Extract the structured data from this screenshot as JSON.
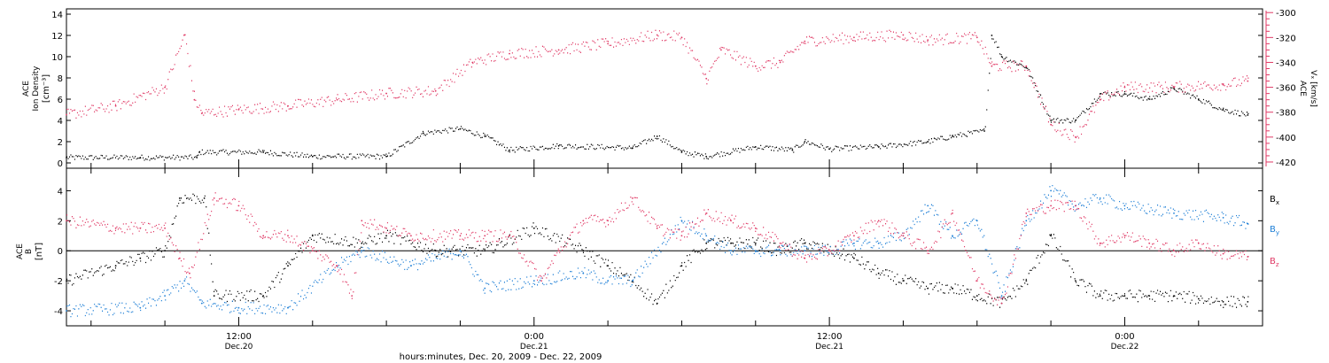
{
  "colors": {
    "black": "#000000",
    "magenta": "#e03a66",
    "blue": "#1e7fd6"
  },
  "time_axis": {
    "start_hour": 5,
    "end_hour": 53.6,
    "major": [
      {
        "hour": 12,
        "time": "12:00",
        "date": "Dec.20"
      },
      {
        "hour": 24,
        "time": "0:00",
        "date": "Dec.21"
      },
      {
        "hour": 36,
        "time": "12:00",
        "date": "Dec.21"
      },
      {
        "hour": 48,
        "time": "0:00",
        "date": "Dec.22"
      }
    ],
    "xlabel": "hours:minutes, Dec. 20, 2009 - Dec. 22, 2009"
  },
  "chart_data": [
    {
      "type": "scatter",
      "panel": "top",
      "ylabel_lines": [
        "ACE",
        "Ion Density",
        "[cm⁻³]"
      ],
      "ylim": [
        -0.5,
        14.5
      ],
      "yticks": [
        0,
        2,
        4,
        6,
        8,
        10,
        12,
        14
      ],
      "y2label_lines": [
        "ACE",
        "Vₓ [km/s]"
      ],
      "y2lim": [
        -425,
        -297
      ],
      "y2ticks": [
        -300,
        -320,
        -340,
        -360,
        -380,
        -400,
        -420
      ],
      "series": [
        {
          "name": "",
          "color": "black",
          "axis": "left",
          "hours": [
            5,
            8,
            10.3,
            10.4,
            13,
            15,
            18,
            19.5,
            21,
            22,
            23,
            25,
            28,
            29,
            30,
            31,
            33,
            34.5,
            35,
            36,
            38,
            40,
            41,
            42.3,
            42.6,
            43,
            44,
            45,
            46,
            47,
            48,
            49,
            50,
            51,
            52,
            53
          ],
          "values": [
            0.5,
            0.5,
            0.5,
            1.0,
            1.0,
            0.6,
            0.6,
            2.8,
            3.2,
            2.5,
            1.2,
            1.6,
            1.4,
            2.5,
            1.0,
            0.6,
            1.5,
            1.2,
            2.0,
            1.3,
            1.5,
            2.0,
            2.5,
            3.0,
            12.0,
            10.0,
            9.0,
            4.0,
            4.0,
            6.5,
            6.5,
            6.0,
            7.0,
            6.0,
            5.0,
            4.5
          ]
        },
        {
          "name": "",
          "color": "magenta",
          "axis": "right",
          "hours": [
            5,
            7,
            9,
            9.8,
            10.2,
            10.5,
            12,
            14,
            16,
            18,
            20,
            21.5,
            23,
            25,
            27,
            29,
            30,
            31,
            31.6,
            33,
            34,
            35,
            37,
            39,
            40,
            42,
            42.6,
            44,
            45,
            46,
            47,
            48,
            50,
            52,
            53
          ],
          "values": [
            -382,
            -375,
            -360,
            -318,
            -370,
            -381,
            -378,
            -375,
            -370,
            -365,
            -363,
            -340,
            -333,
            -330,
            -325,
            -318,
            -320,
            -353,
            -330,
            -343,
            -340,
            -323,
            -320,
            -318,
            -322,
            -320,
            -343,
            -343,
            -390,
            -400,
            -370,
            -360,
            -360,
            -358,
            -355
          ]
        }
      ]
    },
    {
      "type": "scatter",
      "panel": "bottom",
      "ylabel_lines": [
        "ACE",
        "B",
        "[nT]"
      ],
      "ylim": [
        -5,
        5.5
      ],
      "yticks": [
        -4,
        -2,
        0,
        2,
        4
      ],
      "series": [
        {
          "name": "Bx",
          "color": "black",
          "hours": [
            5,
            7,
            8,
            9,
            9.6,
            10.6,
            11,
            13,
            14,
            15,
            17,
            18,
            20,
            22,
            24,
            26,
            27,
            28,
            29,
            30,
            31,
            32,
            33,
            34,
            35,
            36,
            37,
            38,
            39,
            40,
            41,
            42,
            43,
            44,
            45,
            46,
            47,
            48,
            49,
            50,
            51,
            52,
            53
          ],
          "values": [
            -2.0,
            -1.0,
            -0.5,
            0.0,
            3.5,
            3.5,
            -3.0,
            -3.0,
            -1.0,
            1.0,
            0.5,
            1.0,
            0.0,
            0.0,
            1.5,
            0.0,
            -1.0,
            -2.0,
            -3.5,
            -1.0,
            0.5,
            0.5,
            0.5,
            0.0,
            0.5,
            0.0,
            -0.5,
            -1.5,
            -2.0,
            -2.5,
            -2.5,
            -3.0,
            -3.5,
            -2.0,
            1.0,
            -2.0,
            -3.0,
            -3.0,
            -3.0,
            -3.0,
            -3.2,
            -3.4,
            -3.4
          ]
        },
        {
          "name": "By",
          "color": "blue",
          "hours": [
            5,
            8,
            9,
            9.8,
            10.5,
            12,
            14,
            16,
            17,
            19,
            21,
            22,
            24,
            26,
            27,
            28,
            30,
            31,
            32,
            33,
            34,
            35,
            36,
            37,
            38,
            39,
            40,
            41,
            42,
            43,
            44,
            45,
            46,
            47,
            48,
            50,
            52,
            53
          ],
          "values": [
            -4.0,
            -3.8,
            -3.0,
            -2.0,
            -3.5,
            -3.8,
            -3.8,
            -1.0,
            0.0,
            -1.0,
            0.0,
            -2.5,
            -2.0,
            -1.5,
            -2.0,
            -2.0,
            2.0,
            1.0,
            0.0,
            0.0,
            0.0,
            0.0,
            0.0,
            0.5,
            0.5,
            1.0,
            3.0,
            1.0,
            2.0,
            -3.0,
            2.0,
            4.0,
            3.0,
            3.5,
            3.0,
            2.5,
            2.2,
            1.8
          ]
        },
        {
          "name": "Bz",
          "color": "magenta",
          "hours": [
            5,
            7,
            8,
            9,
            9.6,
            10,
            11,
            12,
            13,
            14,
            15,
            16,
            16.6,
            17,
            18,
            19,
            21,
            22,
            23,
            24.3,
            25,
            26,
            27,
            28,
            29,
            30,
            31,
            32,
            33,
            34,
            35,
            36,
            37,
            38,
            39,
            40,
            41,
            42,
            43,
            44,
            45,
            46,
            47,
            48,
            49,
            50,
            51,
            52,
            53
          ],
          "values": [
            2.0,
            1.5,
            1.5,
            1.5,
            -0.5,
            -1.5,
            3.5,
            3.0,
            1.0,
            1.0,
            0.0,
            -1.0,
            -3.0,
            2.0,
            1.5,
            1.0,
            1.0,
            1.0,
            1.0,
            -2.0,
            0.0,
            2.0,
            2.0,
            3.5,
            1.5,
            1.0,
            2.5,
            2.0,
            1.5,
            0.5,
            -0.5,
            0.0,
            1.0,
            2.0,
            1.0,
            0.0,
            2.5,
            -2.0,
            -3.5,
            2.5,
            3.0,
            3.0,
            0.5,
            1.0,
            0.5,
            0.0,
            0.5,
            -0.2,
            -0.4
          ]
        }
      ]
    }
  ]
}
